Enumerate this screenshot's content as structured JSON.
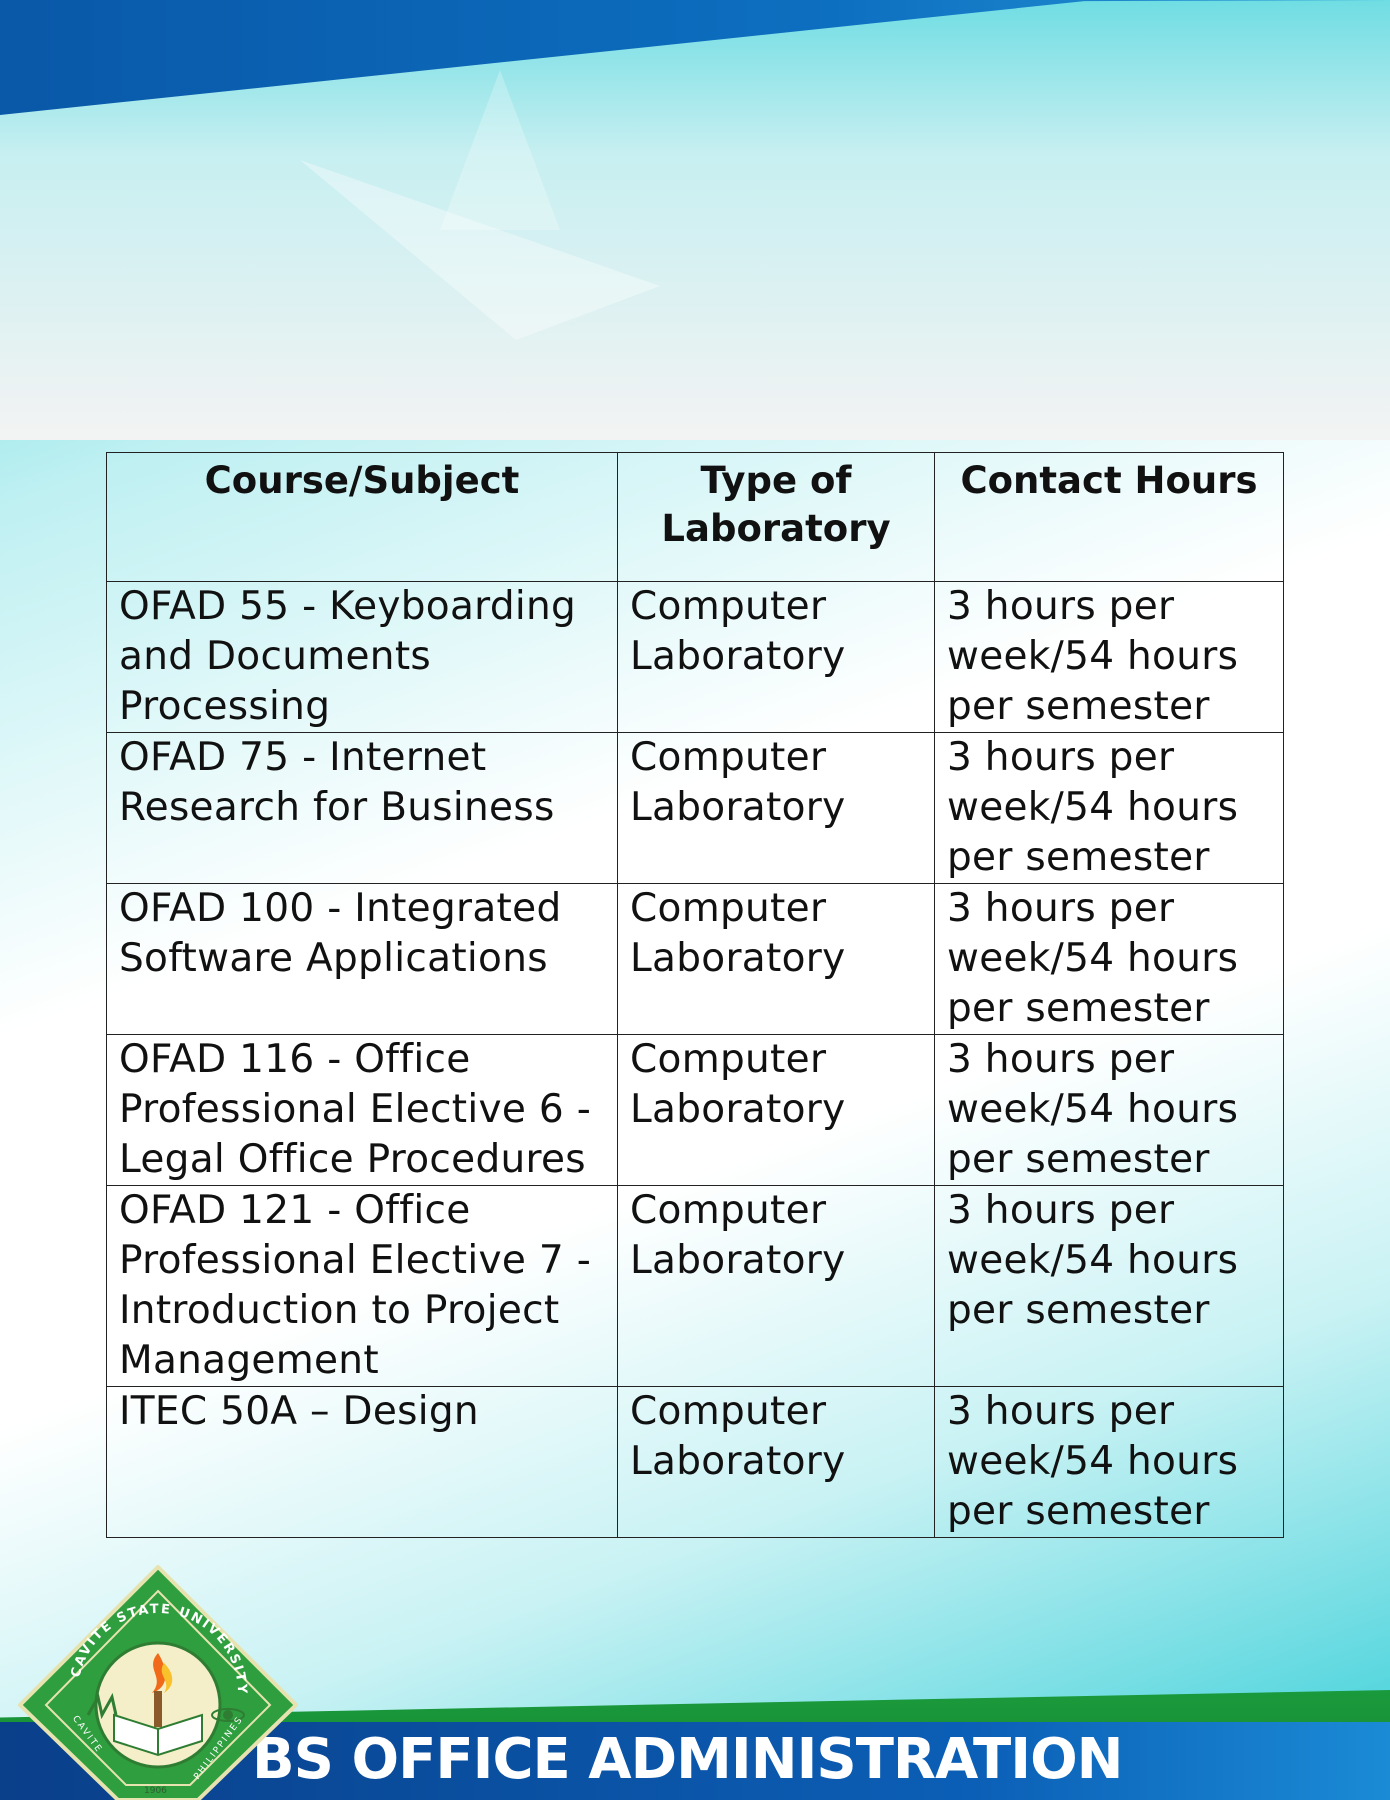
{
  "table": {
    "headers": [
      "Course/Subject",
      "Type of Laboratory",
      "Contact Hours"
    ],
    "rows": [
      {
        "course": "OFAD  55 - Keyboarding and Documents Processing",
        "lab": "Computer Laboratory",
        "hours": "3 hours per week/54 hours per semester"
      },
      {
        "course": "OFAD 75 - Internet Research for Business",
        "lab": "Computer Laboratory",
        "hours": "3 hours per week/54 hours per semester"
      },
      {
        "course": "OFAD 100 - Integrated Software Applications",
        "lab": "Computer Laboratory",
        "hours": "3 hours per week/54 hours per semester"
      },
      {
        "course": "OFAD 116 - Office Professional Elective 6 - Legal Office Procedures",
        "lab": "Computer Laboratory",
        "hours": "3 hours per week/54 hours per semester"
      },
      {
        "course": "OFAD 121 - Office Professional Elective 7 - Introduction to Project Management",
        "lab": "Computer Laboratory",
        "hours": "3 hours per week/54 hours per semester"
      },
      {
        "course": "ITEC 50A – Design",
        "lab": "Computer Laboratory",
        "hours": "3 hours per week/54 hours per semester"
      }
    ]
  },
  "footer": {
    "program_title": "BS OFFICE ADMINISTRATION",
    "seal": {
      "university": "CAVITE STATE UNIVERSITY",
      "place_left": "CAVITE",
      "place_right": "PHILIPPINES",
      "year": "1906"
    }
  },
  "colors": {
    "top_stripe": "#0b63b4",
    "footer_green": "#1a9a3c",
    "footer_blue": "#0b4fa0",
    "accent_teal": "#38cfd8"
  }
}
